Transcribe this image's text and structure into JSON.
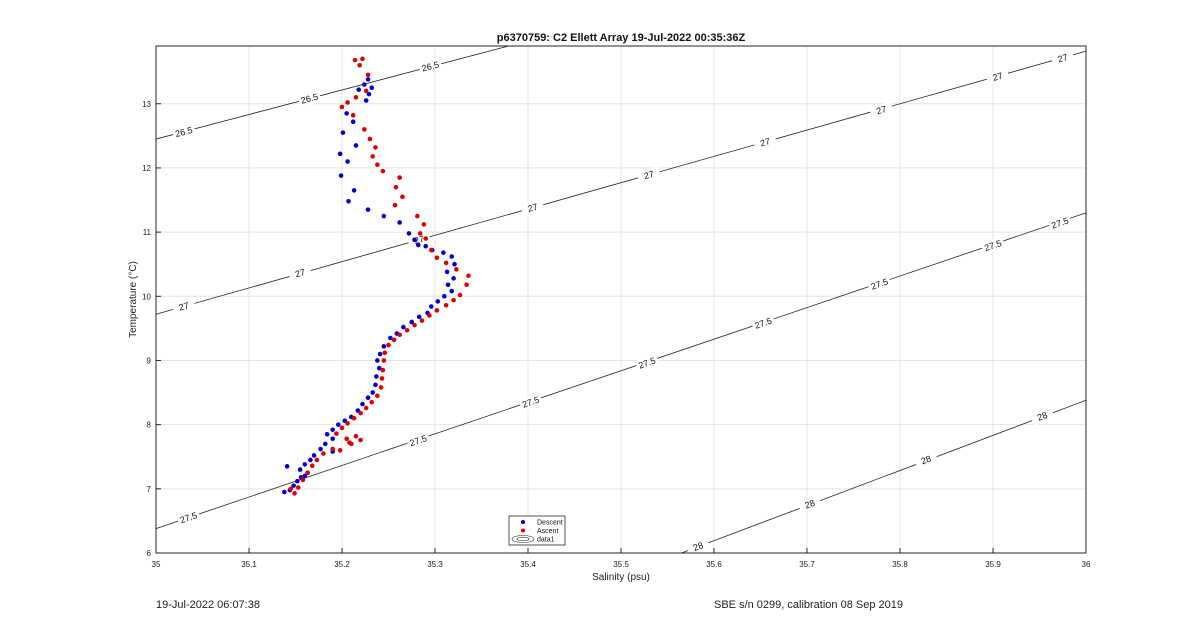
{
  "footer": {
    "left_text": "19-Jul-2022 06:07:38",
    "right_text": "SBE s/n 0299, calibration 08 Sep 2019"
  },
  "chart_data": {
    "type": "scatter",
    "title": "p6370759: C2 Ellett Array 19-Jul-2022 00:35:36Z",
    "xlabel": "Salinity (psu)",
    "ylabel": "Temperature (°C)",
    "xlim": [
      35,
      36
    ],
    "ylim": [
      6,
      13.9
    ],
    "xticks": [
      "35",
      "35.1",
      "35.2",
      "35.3",
      "35.4",
      "35.5",
      "35.6",
      "35.7",
      "35.8",
      "35.9",
      "36"
    ],
    "yticks": [
      "6",
      "7",
      "8",
      "9",
      "10",
      "11",
      "12",
      "13"
    ],
    "grid": true,
    "legend_position": "bottom-center",
    "legend": [
      "Descent",
      "Ascent",
      "data1"
    ],
    "colors": {
      "descent": "#0000cc",
      "ascent": "#dd0000",
      "contour": "#222222",
      "grid": "#e4e4e4"
    },
    "series": [
      {
        "name": "Descent",
        "points": [
          [
            35.228,
            13.38
          ],
          [
            35.232,
            13.25
          ],
          [
            35.229,
            13.15
          ],
          [
            35.226,
            13.05
          ],
          [
            35.224,
            13.3
          ],
          [
            35.218,
            13.22
          ],
          [
            35.205,
            12.85
          ],
          [
            35.212,
            12.72
          ],
          [
            35.201,
            12.55
          ],
          [
            35.215,
            12.35
          ],
          [
            35.198,
            12.22
          ],
          [
            35.206,
            12.1
          ],
          [
            35.199,
            11.88
          ],
          [
            35.213,
            11.65
          ],
          [
            35.207,
            11.48
          ],
          [
            35.228,
            11.35
          ],
          [
            35.245,
            11.25
          ],
          [
            35.262,
            11.15
          ],
          [
            35.272,
            10.98
          ],
          [
            35.278,
            10.88
          ],
          [
            35.282,
            10.8
          ],
          [
            35.29,
            10.78
          ],
          [
            35.297,
            10.72
          ],
          [
            35.309,
            10.68
          ],
          [
            35.318,
            10.62
          ],
          [
            35.321,
            10.5
          ],
          [
            35.313,
            10.38
          ],
          [
            35.32,
            10.28
          ],
          [
            35.314,
            10.18
          ],
          [
            35.318,
            10.08
          ],
          [
            35.31,
            10.0
          ],
          [
            35.303,
            9.92
          ],
          [
            35.296,
            9.84
          ],
          [
            35.292,
            9.74
          ],
          [
            35.283,
            9.68
          ],
          [
            35.275,
            9.6
          ],
          [
            35.266,
            9.52
          ],
          [
            35.259,
            9.42
          ],
          [
            35.252,
            9.35
          ],
          [
            35.245,
            9.22
          ],
          [
            35.241,
            9.1
          ],
          [
            35.238,
            9.0
          ],
          [
            35.24,
            8.88
          ],
          [
            35.237,
            8.75
          ],
          [
            35.236,
            8.62
          ],
          [
            35.233,
            8.5
          ],
          [
            35.228,
            8.42
          ],
          [
            35.222,
            8.32
          ],
          [
            35.217,
            8.22
          ],
          [
            35.21,
            8.12
          ],
          [
            35.203,
            8.06
          ],
          [
            35.196,
            8.0
          ],
          [
            35.19,
            7.92
          ],
          [
            35.184,
            7.85
          ],
          [
            35.19,
            7.78
          ],
          [
            35.182,
            7.7
          ],
          [
            35.177,
            7.62
          ],
          [
            35.19,
            7.58
          ],
          [
            35.17,
            7.52
          ],
          [
            35.166,
            7.45
          ],
          [
            35.16,
            7.38
          ],
          [
            35.155,
            7.3
          ],
          [
            35.16,
            7.2
          ],
          [
            35.152,
            7.12
          ],
          [
            35.148,
            7.05
          ],
          [
            35.144,
            6.98
          ],
          [
            35.138,
            6.95
          ],
          [
            35.141,
            7.35
          ],
          [
            35.156,
            7.18
          ],
          [
            35.163,
            7.25
          ]
        ]
      },
      {
        "name": "Ascent",
        "points": [
          [
            35.214,
            13.68
          ],
          [
            35.222,
            13.7
          ],
          [
            35.219,
            13.6
          ],
          [
            35.228,
            13.45
          ],
          [
            35.226,
            13.2
          ],
          [
            35.215,
            13.1
          ],
          [
            35.206,
            13.02
          ],
          [
            35.2,
            12.95
          ],
          [
            35.212,
            12.82
          ],
          [
            35.224,
            12.6
          ],
          [
            35.23,
            12.45
          ],
          [
            35.236,
            12.32
          ],
          [
            35.233,
            12.18
          ],
          [
            35.238,
            12.05
          ],
          [
            35.244,
            11.95
          ],
          [
            35.262,
            11.85
          ],
          [
            35.258,
            11.7
          ],
          [
            35.265,
            11.55
          ],
          [
            35.257,
            11.42
          ],
          [
            35.281,
            11.25
          ],
          [
            35.288,
            11.12
          ],
          [
            35.284,
            10.98
          ],
          [
            35.29,
            10.9
          ],
          [
            35.296,
            10.72
          ],
          [
            35.302,
            10.6
          ],
          [
            35.312,
            10.52
          ],
          [
            35.323,
            10.42
          ],
          [
            35.336,
            10.32
          ],
          [
            35.334,
            10.18
          ],
          [
            35.327,
            10.02
          ],
          [
            35.32,
            9.94
          ],
          [
            35.312,
            9.86
          ],
          [
            35.302,
            9.78
          ],
          [
            35.294,
            9.7
          ],
          [
            35.286,
            9.62
          ],
          [
            35.278,
            9.55
          ],
          [
            35.27,
            9.47
          ],
          [
            35.262,
            9.4
          ],
          [
            35.256,
            9.32
          ],
          [
            35.25,
            9.24
          ],
          [
            35.246,
            9.12
          ],
          [
            35.245,
            9.0
          ],
          [
            35.244,
            8.85
          ],
          [
            35.243,
            8.72
          ],
          [
            35.242,
            8.58
          ],
          [
            35.238,
            8.45
          ],
          [
            35.232,
            8.35
          ],
          [
            35.226,
            8.26
          ],
          [
            35.22,
            8.18
          ],
          [
            35.213,
            8.1
          ],
          [
            35.206,
            8.02
          ],
          [
            35.2,
            7.95
          ],
          [
            35.194,
            7.86
          ],
          [
            35.205,
            7.78
          ],
          [
            35.215,
            7.82
          ],
          [
            35.21,
            7.7
          ],
          [
            35.19,
            7.62
          ],
          [
            35.18,
            7.55
          ],
          [
            35.173,
            7.45
          ],
          [
            35.168,
            7.36
          ],
          [
            35.163,
            7.25
          ],
          [
            35.158,
            7.14
          ],
          [
            35.153,
            7.02
          ],
          [
            35.149,
            6.93
          ],
          [
            35.145,
            7.0
          ],
          [
            35.198,
            7.6
          ],
          [
            35.208,
            7.72
          ],
          [
            35.22,
            7.76
          ]
        ]
      }
    ],
    "isopycnals": [
      {
        "label": "26.5",
        "s0": 35.0,
        "t0": 12.45,
        "s1": 35.4,
        "t1": 13.98,
        "labels": [
          [
            35.03,
            12.56
          ],
          [
            35.165,
            13.08
          ],
          [
            35.295,
            13.58
          ]
        ]
      },
      {
        "label": "27",
        "s0": 35.0,
        "t0": 9.72,
        "s1": 36.0,
        "t1": 13.82,
        "labels": [
          [
            35.03,
            9.84
          ],
          [
            35.155,
            10.36
          ],
          [
            35.283,
            10.88
          ],
          [
            35.405,
            11.38
          ],
          [
            35.53,
            11.89
          ],
          [
            35.655,
            12.4
          ],
          [
            35.78,
            12.9
          ],
          [
            35.905,
            13.42
          ],
          [
            35.975,
            13.71
          ]
        ]
      },
      {
        "label": "27.5",
        "s0": 35.0,
        "t0": 6.38,
        "s1": 36.0,
        "t1": 11.3,
        "labels": [
          [
            35.035,
            6.55
          ],
          [
            35.282,
            7.75
          ],
          [
            35.403,
            8.35
          ],
          [
            35.528,
            8.96
          ],
          [
            35.653,
            9.58
          ],
          [
            35.778,
            10.19
          ],
          [
            35.9,
            10.79
          ],
          [
            35.972,
            11.14
          ]
        ]
      },
      {
        "label": "28",
        "s0": 35.565,
        "t0": 6.0,
        "s1": 36.0,
        "t1": 8.38,
        "labels": [
          [
            35.583,
            6.1
          ],
          [
            35.703,
            6.76
          ],
          [
            35.828,
            7.45
          ],
          [
            35.953,
            8.13
          ]
        ]
      }
    ]
  }
}
